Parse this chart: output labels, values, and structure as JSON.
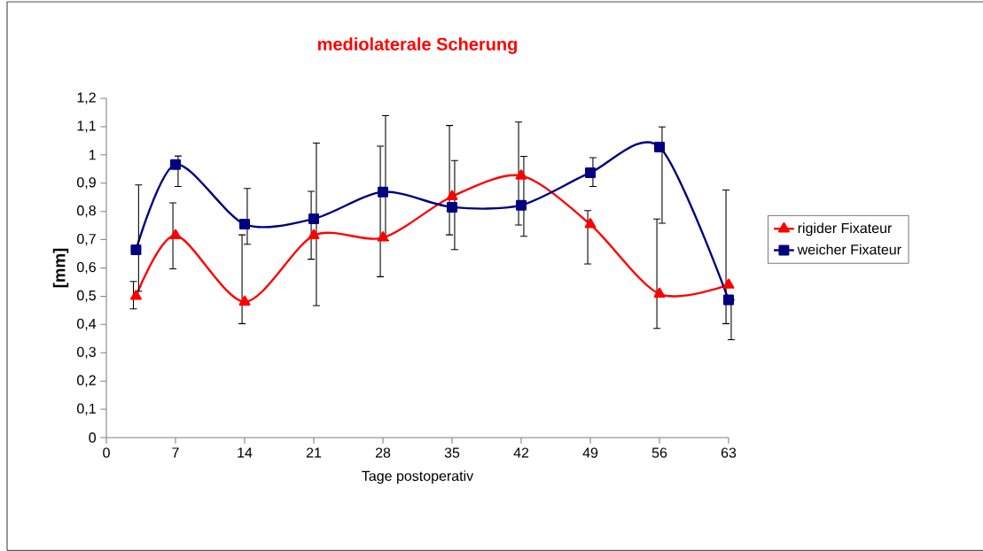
{
  "chart_data": {
    "type": "line",
    "title": "mediolaterale Scherung",
    "xlabel": "Tage postoperativ",
    "ylabel": "[mm]",
    "x": [
      3,
      7,
      14,
      21,
      28,
      35,
      42,
      49,
      56,
      63
    ],
    "series": [
      {
        "name": "rigider Fixateur",
        "color": "#ff0000",
        "marker": "triangle",
        "values": [
          0.5,
          0.715,
          0.48,
          0.715,
          0.707,
          0.853,
          0.926,
          0.754,
          0.508,
          0.54
        ],
        "errors": [
          [
            0.455,
            0.552
          ],
          [
            0.597,
            0.83
          ],
          [
            0.403,
            0.717
          ],
          [
            0.631,
            0.871
          ],
          [
            0.569,
            1.031
          ],
          [
            0.717,
            1.104
          ],
          [
            0.752,
            1.116
          ],
          [
            0.614,
            0.803
          ],
          [
            0.386,
            0.773
          ],
          [
            0.403,
            0.876
          ]
        ]
      },
      {
        "name": "weicher Fixateur",
        "color": "#000080",
        "marker": "square",
        "values": [
          0.664,
          0.966,
          0.755,
          0.774,
          0.869,
          0.815,
          0.822,
          0.937,
          1.028,
          0.487
        ],
        "errors": [
          [
            0.518,
            0.894
          ],
          [
            0.888,
            0.996
          ],
          [
            0.684,
            0.881
          ],
          [
            0.467,
            1.042
          ],
          [
            0.697,
            1.139
          ],
          [
            0.665,
            0.98
          ],
          [
            0.712,
            0.995
          ],
          [
            0.888,
            0.99
          ],
          [
            0.758,
            1.099
          ],
          [
            0.346,
            0.487
          ]
        ]
      }
    ],
    "xlim": [
      0,
      63
    ],
    "xticks": [
      0,
      7,
      14,
      21,
      28,
      35,
      42,
      49,
      56,
      63
    ],
    "ylim": [
      0,
      1.2
    ],
    "yticks": [
      0,
      {
        "value": 0.1,
        "label": "0,1"
      },
      {
        "value": 0.2,
        "label": "0,2"
      },
      {
        "value": 0.3,
        "label": "0,3"
      },
      {
        "value": 0.4,
        "label": "0,4"
      },
      {
        "value": 0.5,
        "label": "0,5"
      },
      {
        "value": 0.6,
        "label": "0,6"
      },
      {
        "value": 0.7,
        "label": "0,7"
      },
      {
        "value": 0.8,
        "label": "0,8"
      },
      {
        "value": 0.9,
        "label": "0,9"
      },
      1,
      {
        "value": 1.1,
        "label": "1,1"
      },
      {
        "value": 1.2,
        "label": "1,2"
      }
    ],
    "grid": false,
    "legend": "right",
    "line_style": "solid"
  }
}
